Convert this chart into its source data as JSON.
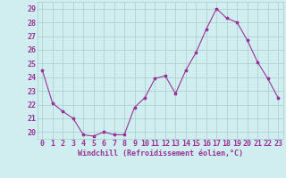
{
  "x": [
    0,
    1,
    2,
    3,
    4,
    5,
    6,
    7,
    8,
    9,
    10,
    11,
    12,
    13,
    14,
    15,
    16,
    17,
    18,
    19,
    20,
    21,
    22,
    23
  ],
  "y": [
    24.5,
    22.1,
    21.5,
    21.0,
    19.8,
    19.7,
    20.0,
    19.8,
    19.8,
    21.8,
    22.5,
    23.9,
    24.1,
    22.8,
    24.5,
    25.8,
    27.5,
    29.0,
    28.3,
    28.0,
    26.7,
    25.1,
    23.9,
    22.5
  ],
  "line_color": "#993399",
  "marker": "*",
  "xlabel": "Windchill (Refroidissement éolien,°C)",
  "xlim": [
    -0.5,
    23.5
  ],
  "ylim": [
    19.5,
    29.5
  ],
  "yticks": [
    20,
    21,
    22,
    23,
    24,
    25,
    26,
    27,
    28,
    29
  ],
  "xticks": [
    0,
    1,
    2,
    3,
    4,
    5,
    6,
    7,
    8,
    9,
    10,
    11,
    12,
    13,
    14,
    15,
    16,
    17,
    18,
    19,
    20,
    21,
    22,
    23
  ],
  "bg_color": "#d0eef0",
  "grid_color": "#aacccc",
  "font_color": "#993399",
  "xlabel_fontsize": 6,
  "tick_fontsize": 6
}
